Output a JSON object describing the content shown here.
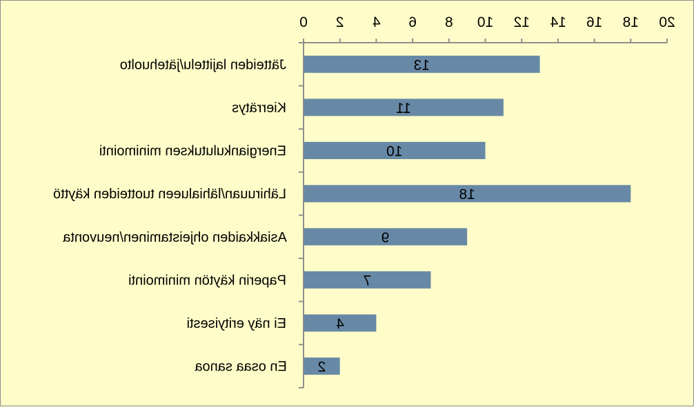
{
  "chart_data": {
    "type": "bar",
    "orientation": "horizontal",
    "mirrored": true,
    "categories": [
      "Jätteiden lajittelu/jätehuolto",
      "Kierrätys",
      "Energiankulutuksen minimointi",
      "Lähiruuan/lähialueen tuotteiden käyttö",
      "Asiakkaiden ohjeistaminen/neuvonta",
      "Paperin käytön minimointi",
      "Ei näy erityisesti",
      "En osaa sanoa"
    ],
    "values": [
      13,
      11,
      10,
      18,
      9,
      7,
      4,
      2
    ],
    "xlim": [
      0,
      20
    ],
    "xticks": [
      0,
      2,
      4,
      6,
      8,
      10,
      12,
      14,
      16,
      18,
      20
    ],
    "axis_position": "top",
    "data_labels": true,
    "grid": false,
    "colors": {
      "bar": "#6889a6",
      "background": "#fefdc9",
      "axis": "#8e8e8e"
    }
  }
}
